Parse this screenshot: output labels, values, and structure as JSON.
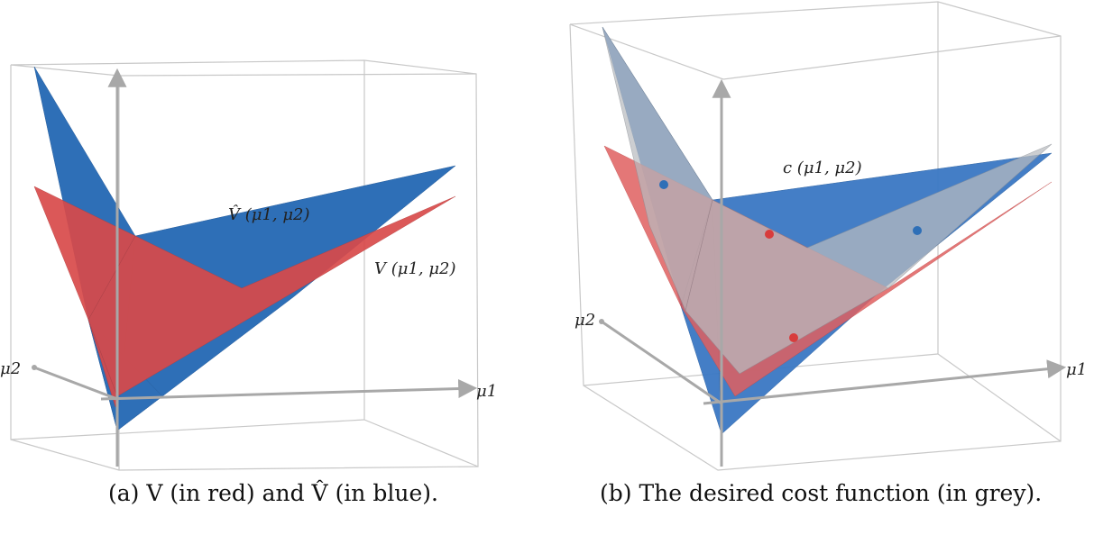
{
  "panels": [
    {
      "caption": "(a) V (in red) and V̂ (in blue).",
      "labels": {
        "vhat": "V̂ (μ1, μ2)",
        "v": "V (μ1, μ2)",
        "x_axis": "μ1",
        "y_axis": "μ2"
      },
      "colors": {
        "red": "#d84a4a",
        "blue": "#2e6fb7"
      }
    },
    {
      "caption": "(b) The desired cost function (in grey).",
      "labels": {
        "c": "c (μ1, μ2)",
        "x_axis": "μ1",
        "y_axis": "μ2"
      },
      "colors": {
        "red": "#e06060",
        "blue": "#3a78c4",
        "grey": "#9aa0a6"
      }
    }
  ]
}
